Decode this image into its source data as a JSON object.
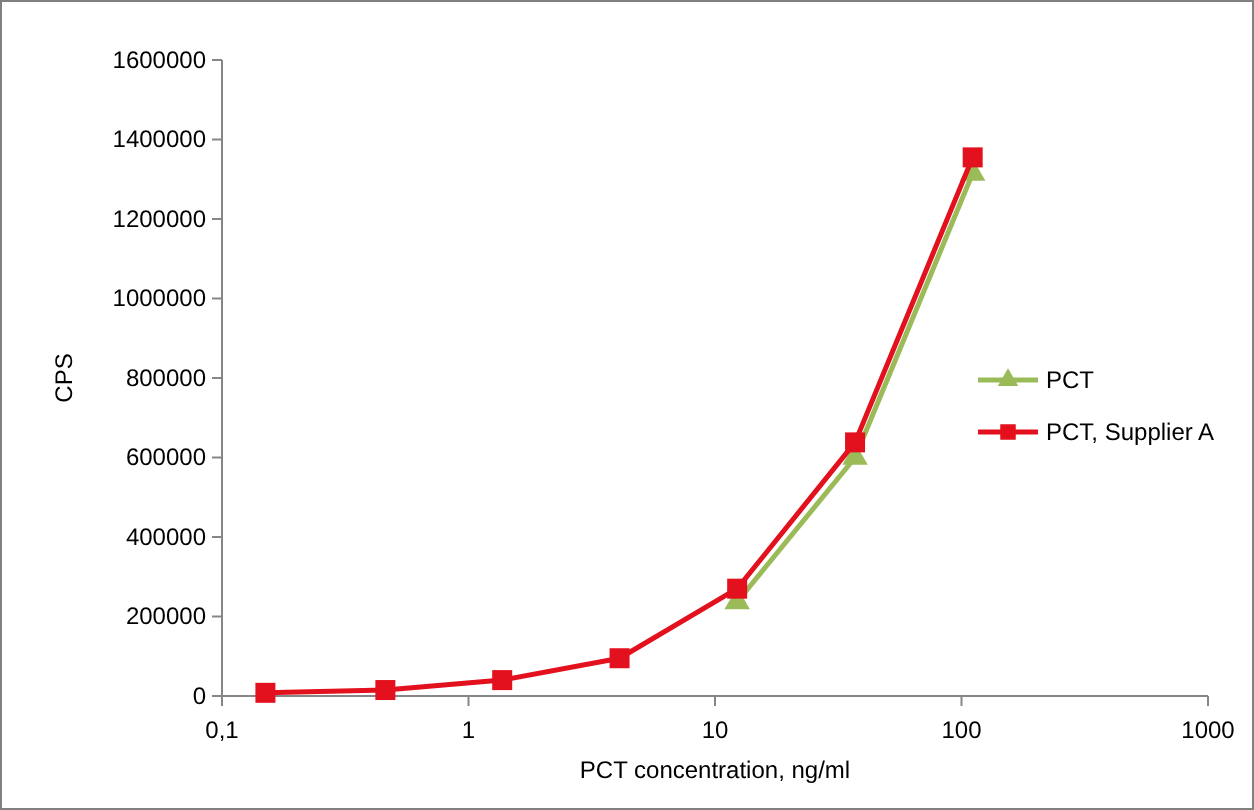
{
  "chart_data": {
    "type": "line",
    "xlabel": "PCT concentration, ng/ml",
    "ylabel": "CPS",
    "log": "x",
    "xlim": [
      0.1,
      1000
    ],
    "xticks": [
      {
        "value": 0.1,
        "label": "0,1"
      },
      1,
      10,
      100,
      1000
    ],
    "ylim": [
      0,
      1600000
    ],
    "yticks": [
      0,
      200000,
      400000,
      600000,
      800000,
      1000000,
      1200000,
      1400000,
      1600000
    ],
    "grid": false,
    "legend": "right",
    "line_style": "solid",
    "x": [
      0.15,
      0.46,
      1.37,
      4.1,
      12.3,
      37,
      111
    ],
    "series": [
      {
        "name": "PCT",
        "color": "#9bbb59",
        "marker": "triangle",
        "values": [
          null,
          null,
          null,
          null,
          237000,
          600000,
          1315000
        ]
      },
      {
        "name": "PCT, Supplier A",
        "color": "#e3101e",
        "marker": "square",
        "values": [
          8000,
          15000,
          40000,
          95000,
          270000,
          638000,
          1355000
        ]
      }
    ]
  }
}
